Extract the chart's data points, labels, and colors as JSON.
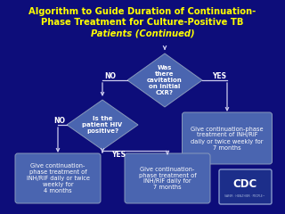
{
  "bg_color": "#0d0d7a",
  "title_line1": "Algorithm to Guide Duration of Continuation-",
  "title_line2": "Phase Treatment for Culture-Positive TB",
  "title_line3": "Patients (Continued)",
  "title_color": "#ffff00",
  "title_fontsize": 7.2,
  "diamond_color": "#4a65b0",
  "box_color": "#4a65b0",
  "text_color": "#ffffff",
  "arrow_color": "#ccccee",
  "label_color": "#ffffff",
  "diamond1_text": "Was\nthere\ncavitation\non initial\nCXR?",
  "diamond2_text": "Is the\npatient HIV\npositive?",
  "box_right_text": "Give continuation-phase\ntreatment of INH/RIF\ndaily or twice weekly for\n7 months",
  "box_mid_text": "Give continuation-\nphase treatment of\nINH/RIF daily for\n7 months",
  "box_left_text": "Give continuation-\nphase treatment of\nINH/RIF daily or twice\nweekly for\n4 months",
  "cdc_fill": "#1c2e8a",
  "cdc_border": "#8899cc"
}
